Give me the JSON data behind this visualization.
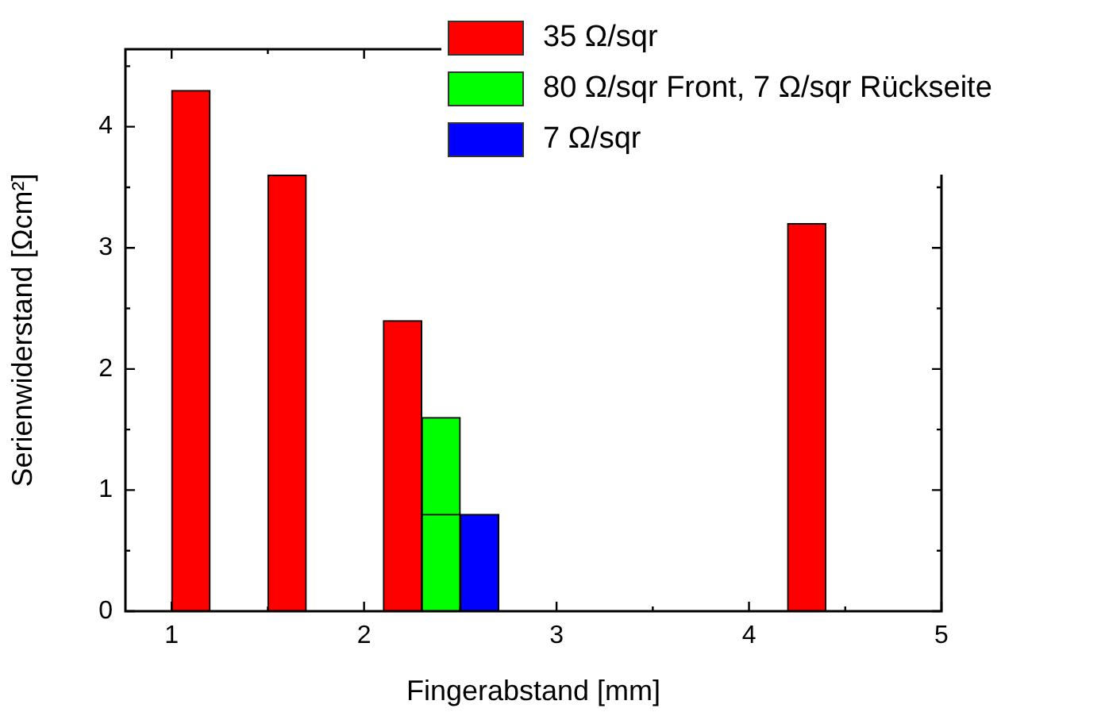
{
  "chart_data": {
    "type": "bar",
    "xlabel": "Fingerabstand [mm]",
    "ylabel": "Serienwiderstand [Ωcm²]",
    "series": [
      {
        "name": "35 Ω/sqr",
        "color": "#ff0000",
        "x": [
          1.1,
          1.6,
          2.2,
          4.3
        ],
        "values": [
          4.3,
          3.6,
          2.4,
          3.2
        ]
      },
      {
        "name": "80 Ω/sqr Front, 7 Ω/sqr Rückseite",
        "color": "#00ff00",
        "x": [
          2.4,
          2.4
        ],
        "values": [
          1.6,
          0.8
        ]
      },
      {
        "name": "7 Ω/sqr",
        "color": "#0000ff",
        "x": [
          2.6
        ],
        "values": [
          0.8
        ]
      }
    ],
    "xlim": [
      0.76,
      5
    ],
    "xticks": [
      1,
      {
        "value": 1.5,
        "label": null
      },
      2,
      {
        "value": 2.5,
        "label": null
      },
      3,
      {
        "value": 3.5,
        "label": null
      },
      4,
      {
        "value": 4.5,
        "label": null
      },
      5
    ],
    "ylim": [
      0,
      4.64
    ],
    "yticks": [
      0,
      {
        "value": 0.5,
        "label": null
      },
      1,
      {
        "value": 1.5,
        "label": null
      },
      2,
      {
        "value": 2.5,
        "label": null
      },
      3,
      {
        "value": 3.5,
        "label": null
      },
      4,
      {
        "value": 4.5,
        "label": null
      }
    ],
    "grid": false,
    "legend": "top right"
  }
}
